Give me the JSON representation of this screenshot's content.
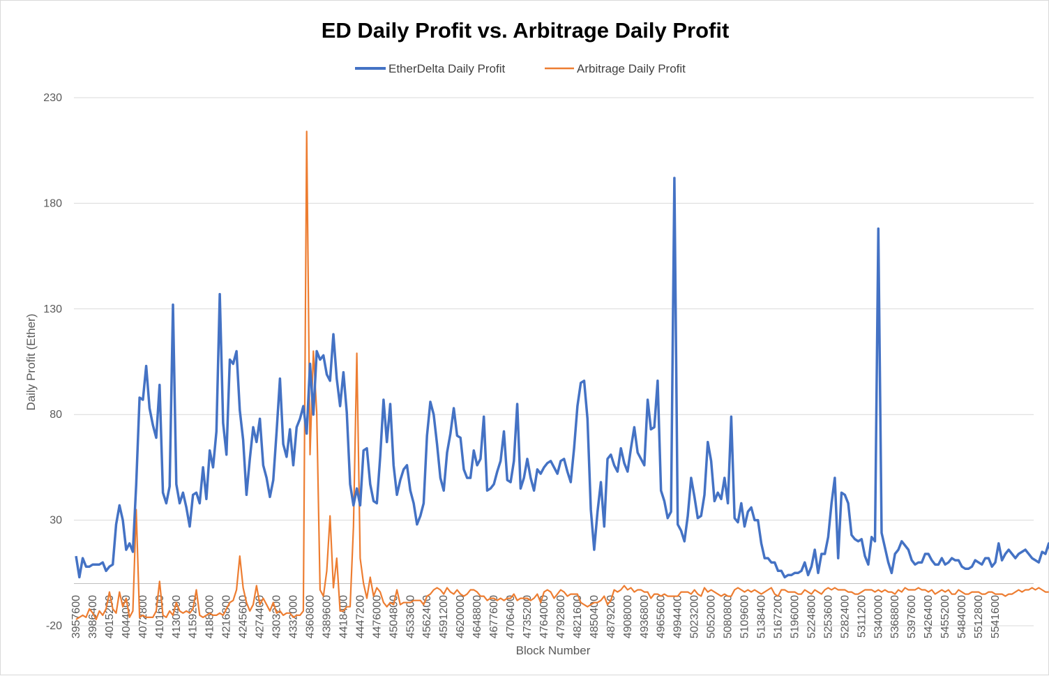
{
  "chart_data": {
    "type": "line",
    "title": "ED Daily Profit vs. Arbitrage Daily Profit",
    "xlabel": "Block Number",
    "ylabel": "Daily Profit (Ether)",
    "ylim": [
      -20,
      230
    ],
    "yticks": [
      -20,
      30,
      80,
      130,
      180,
      230
    ],
    "grid": true,
    "legend_position": "top",
    "x_tick_labels": [
      "3957600",
      "3986400",
      "4015200",
      "4044000",
      "4072800",
      "4101600",
      "4130400",
      "4159200",
      "4188000",
      "4216800",
      "4245600",
      "4274400",
      "4303200",
      "4332000",
      "4360800",
      "4389600",
      "4418400",
      "4447200",
      "4476000",
      "4504800",
      "4533600",
      "4562400",
      "4591200",
      "4620000",
      "4648800",
      "4677600",
      "4706400",
      "4735200",
      "4764000",
      "4792800",
      "4821600",
      "4850400",
      "4879200",
      "4908000",
      "4936800",
      "4965600",
      "4994400",
      "5023200",
      "5052000",
      "5080800",
      "5109600",
      "5138400",
      "5167200",
      "5196000",
      "5224800",
      "5253600",
      "5282400",
      "5311200",
      "5340000",
      "5368800",
      "5397600",
      "5426400",
      "5455200",
      "5484000",
      "5512800",
      "5541600"
    ],
    "x_step": 5760,
    "series": [
      {
        "name": "EtherDelta Daily Profit",
        "color": "#4472C4",
        "x_start": 3957600,
        "values": [
          13,
          3,
          12,
          8,
          8,
          9,
          9,
          9,
          10,
          6,
          8,
          9,
          28,
          37,
          30,
          16,
          19,
          15,
          47,
          88,
          87,
          103,
          83,
          75,
          69,
          94,
          43,
          38,
          46,
          132,
          47,
          38,
          43,
          36,
          27,
          42,
          43,
          38,
          55,
          40,
          63,
          55,
          72,
          137,
          76,
          61,
          106,
          104,
          110,
          82,
          68,
          42,
          59,
          74,
          67,
          78,
          56,
          50,
          41,
          49,
          72,
          97,
          66,
          60,
          73,
          56,
          74,
          78,
          84,
          71,
          104,
          80,
          110,
          106,
          108,
          99,
          96,
          118,
          97,
          84,
          100,
          81,
          47,
          37,
          45,
          37,
          63,
          64,
          47,
          39,
          38,
          60,
          87,
          67,
          85,
          56,
          42,
          49,
          54,
          56,
          44,
          38,
          28,
          32,
          38,
          70,
          86,
          80,
          66,
          50,
          44,
          62,
          71,
          83,
          70,
          69,
          54,
          50,
          50,
          63,
          56,
          59,
          79,
          44,
          45,
          47,
          53,
          58,
          72,
          49,
          48,
          58,
          85,
          45,
          50,
          59,
          50,
          44,
          54,
          52,
          55,
          57,
          58,
          55,
          52,
          58,
          59,
          53,
          48,
          64,
          84,
          95,
          96,
          78,
          35,
          16,
          34,
          48,
          27,
          59,
          61,
          56,
          53,
          64,
          57,
          53,
          64,
          74,
          62,
          59,
          56,
          87,
          73,
          74,
          96,
          44,
          39,
          31,
          34,
          192,
          28,
          25,
          20,
          32,
          50,
          41,
          31,
          32,
          42,
          67,
          58,
          39,
          43,
          40,
          50,
          38,
          79,
          31,
          29,
          38,
          27,
          34,
          36,
          30,
          30,
          19,
          12,
          12,
          10,
          10,
          6,
          6,
          3,
          4,
          4,
          5,
          5,
          6,
          10,
          4,
          8,
          16,
          5,
          14,
          14,
          22,
          38,
          50,
          12,
          43,
          42,
          38,
          23,
          21,
          20,
          21,
          13,
          9,
          22,
          20,
          168,
          24,
          17,
          10,
          5,
          14,
          16,
          20,
          18,
          16,
          11,
          9,
          10,
          10,
          14,
          14,
          11,
          9,
          9,
          12,
          9,
          10,
          12,
          11,
          11,
          8,
          7,
          7,
          8,
          11,
          10,
          9,
          12,
          12,
          8,
          10,
          19,
          11,
          14,
          16,
          14,
          12,
          14,
          15,
          16,
          14,
          12,
          11,
          10,
          15,
          14,
          19,
          12,
          12,
          6
        ]
      },
      {
        "name": "Arbitrage Daily Profit",
        "color": "#ED7D31",
        "x_start": 3957600,
        "values": [
          -17,
          -16,
          -15,
          -16,
          -12,
          -14,
          -17,
          -13,
          -15,
          -12,
          -4,
          -12,
          -14,
          -4,
          -11,
          -7,
          -16,
          -13,
          35,
          -16,
          -15,
          -16,
          -16,
          -16,
          -13,
          1,
          -15,
          -16,
          -13,
          -15,
          -9,
          -13,
          -14,
          -13,
          -14,
          -12,
          -3,
          -15,
          -16,
          -15,
          -14,
          -15,
          -15,
          -14,
          -15,
          -12,
          -9,
          -8,
          -3,
          13,
          -2,
          -9,
          -13,
          -10,
          -1,
          -10,
          -7,
          -10,
          -13,
          -9,
          -14,
          -13,
          -15,
          -14,
          -14,
          -16,
          -15,
          -15,
          -13,
          214,
          61,
          110,
          81,
          -3,
          -6,
          6,
          32,
          -2,
          12,
          -13,
          -13,
          -11,
          -11,
          27,
          109,
          12,
          0,
          -7,
          3,
          -6,
          -2,
          -4,
          -9,
          -11,
          -9,
          -10,
          -3,
          -10,
          -9,
          -9,
          -9,
          -8,
          -8,
          -8,
          -10,
          -6,
          -5,
          -3,
          -2,
          -3,
          -5,
          -2,
          -4,
          -5,
          -3,
          -5,
          -6,
          -5,
          -3,
          -3,
          -4,
          -6,
          -6,
          -8,
          -7,
          -7,
          -8,
          -7,
          -8,
          -7,
          -7,
          -5,
          -8,
          -7,
          -7,
          -7,
          -8,
          -7,
          -5,
          -9,
          -4,
          -3,
          -4,
          -7,
          -5,
          -3,
          -4,
          -6,
          -5,
          -5,
          -5,
          -9,
          -10,
          -11,
          -10,
          -9,
          -9,
          -8,
          -6,
          -10,
          -8,
          -3,
          -4,
          -3,
          -1,
          -3,
          -2,
          -4,
          -3,
          -3,
          -4,
          -4,
          -7,
          -5,
          -5,
          -6,
          -5,
          -6,
          -6,
          -6,
          -6,
          -4,
          -4,
          -4,
          -5,
          -3,
          -5,
          -6,
          -2,
          -4,
          -3,
          -4,
          -5,
          -6,
          -5,
          -6,
          -6,
          -3,
          -2,
          -3,
          -4,
          -3,
          -4,
          -3,
          -4,
          -5,
          -4,
          -3,
          -2,
          -5,
          -6,
          -3,
          -3,
          -4,
          -4,
          -4,
          -5,
          -5,
          -3,
          -4,
          -5,
          -3,
          -4,
          -5,
          -3,
          -2,
          -3,
          -2,
          -3,
          -3,
          -3,
          -4,
          -4,
          -5,
          -5,
          -4,
          -3,
          -3,
          -3,
          -4,
          -3,
          -4,
          -3,
          -4,
          -4,
          -5,
          -3,
          -4,
          -2,
          -3,
          -3,
          -3,
          -2,
          -3,
          -3,
          -4,
          -3,
          -5,
          -4,
          -3,
          -4,
          -3,
          -5,
          -5,
          -3,
          -4,
          -5,
          -5,
          -4,
          -4,
          -4,
          -5,
          -5,
          -4,
          -4,
          -5,
          -5,
          -5,
          -6,
          -5,
          -5,
          -4,
          -3,
          -4,
          -3,
          -3,
          -2,
          -3,
          -2,
          -3,
          -4,
          -4
        ]
      }
    ]
  }
}
